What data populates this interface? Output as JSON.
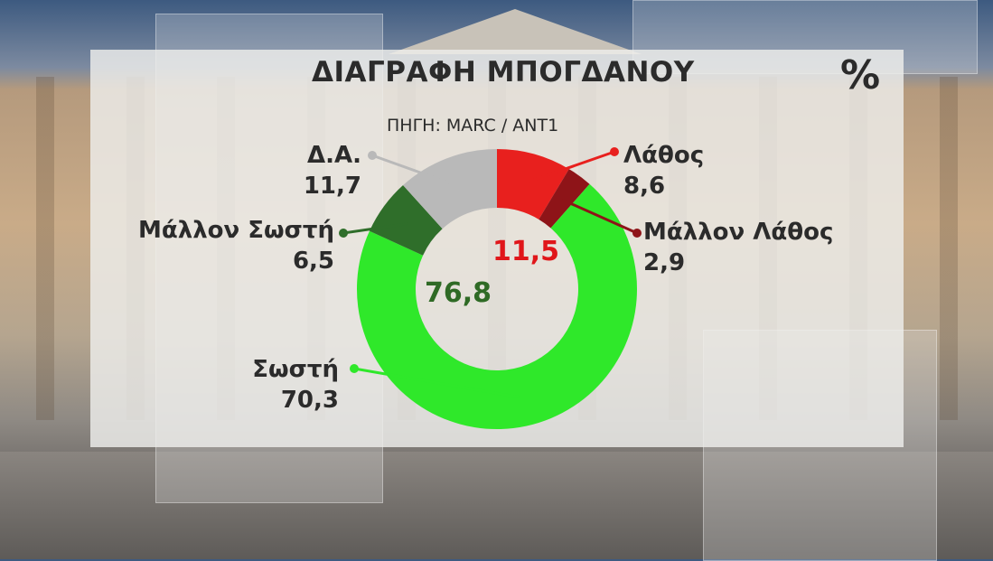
{
  "title": "ΔΙΑΓΡΑΦΗ ΜΠΟΓΔΑΝΟΥ",
  "unit": "%",
  "source": "ΠΗΓΗ: MARC / ΑΝΤ1",
  "chart_data": {
    "type": "pie",
    "donut": true,
    "title": "ΔΙΑΓΡΑΦΗ ΜΠΟΓΔΑΝΟΥ",
    "slices": [
      {
        "label": "Λάθος",
        "value": 8.6,
        "display": "8,6",
        "color": "#e8201e"
      },
      {
        "label": "Μάλλον Λάθος",
        "value": 2.9,
        "display": "2,9",
        "color": "#8e1418"
      },
      {
        "label": "Σωστή",
        "value": 70.3,
        "display": "70,3",
        "color": "#2fe82a"
      },
      {
        "label": "Μάλλον Σωστή",
        "value": 6.5,
        "display": "6,5",
        "color": "#2f6e2a"
      },
      {
        "label": "Δ.Α.",
        "value": 11.7,
        "display": "11,7",
        "color": "#b9b9b9"
      }
    ],
    "group_totals": [
      {
        "value": 11.5,
        "display": "11,5",
        "color": "#e0161a"
      },
      {
        "value": 76.8,
        "display": "76,8",
        "color": "#2f6a25"
      }
    ]
  }
}
